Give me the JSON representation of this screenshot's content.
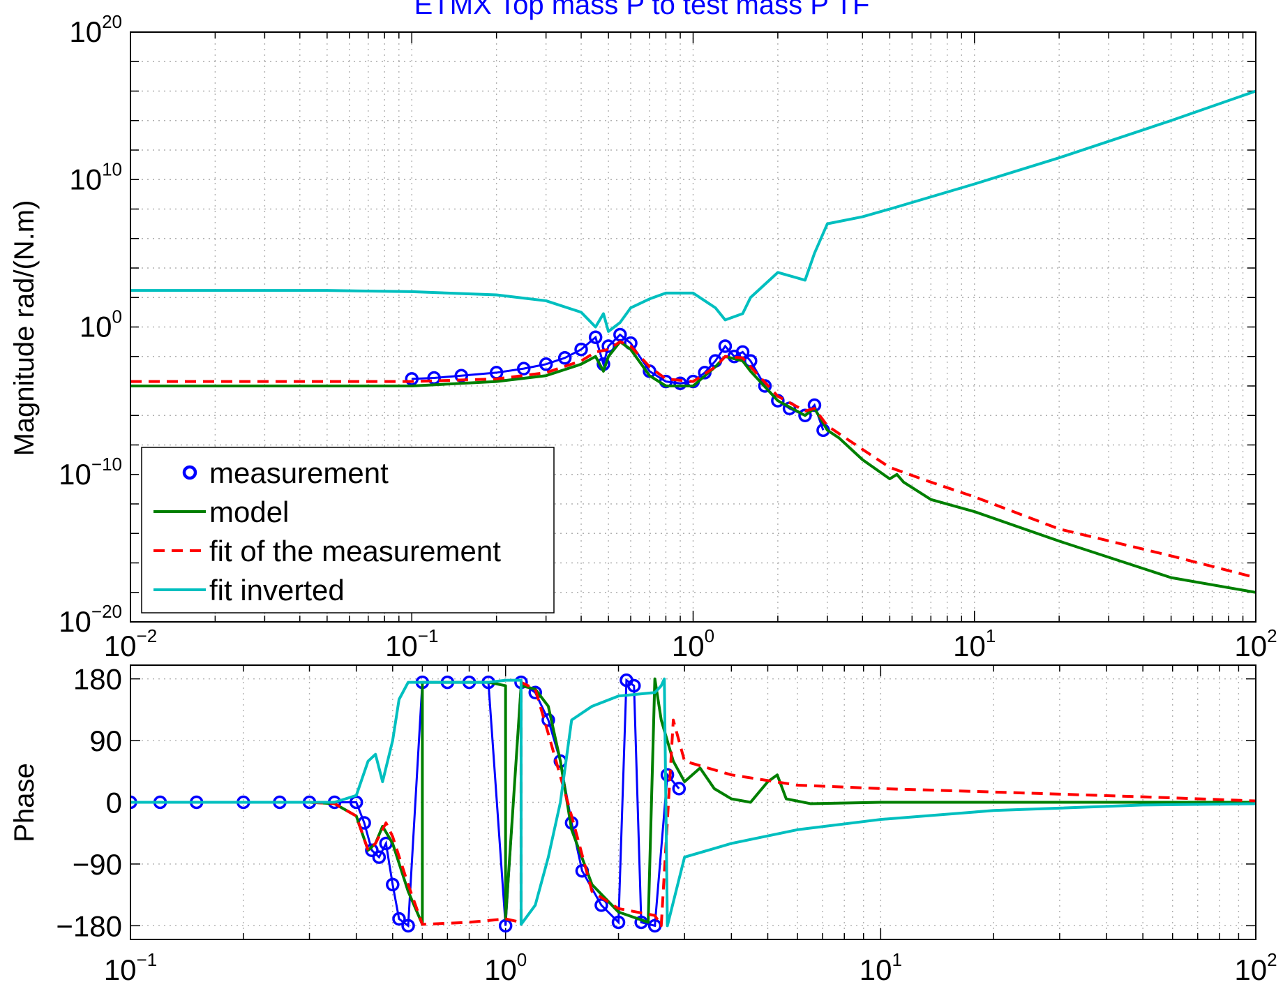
{
  "chart_data": [
    {
      "type": "line",
      "title": "ETMX Top mass P to test mass P TF",
      "title_color": "#0000ff",
      "xlabel": "",
      "ylabel": "Magnitude rad/(N.m)",
      "xscale": "log",
      "yscale": "log",
      "xlim": [
        0.01,
        100
      ],
      "ylim": [
        1e-20,
        1e+20
      ],
      "x_ticks": [
        {
          "base": "10",
          "exp": "−2"
        },
        {
          "base": "10",
          "exp": "−1"
        },
        {
          "base": "10",
          "exp": "0"
        },
        {
          "base": "10",
          "exp": "1"
        },
        {
          "base": "10",
          "exp": "2"
        }
      ],
      "y_ticks": [
        {
          "base": "10",
          "exp": "−20"
        },
        {
          "base": "10",
          "exp": "−10"
        },
        {
          "base": "10",
          "exp": "0"
        },
        {
          "base": "10",
          "exp": "10"
        },
        {
          "base": "10",
          "exp": "20"
        }
      ],
      "grid": true,
      "legend_position": "bottom-left",
      "series": [
        {
          "name": "measurement",
          "color": "#0000ff",
          "style": "circle",
          "x": [
            0.1,
            0.12,
            0.15,
            0.2,
            0.25,
            0.3,
            0.35,
            0.4,
            0.45,
            0.48,
            0.5,
            0.55,
            0.6,
            0.7,
            0.8,
            0.9,
            1.0,
            1.1,
            1.2,
            1.3,
            1.4,
            1.5,
            1.6,
            1.8,
            2.0,
            2.2,
            2.5,
            2.7,
            2.9
          ],
          "y": [
            0.0003,
            0.00035,
            0.0005,
            0.0008,
            0.0015,
            0.003,
            0.008,
            0.03,
            0.2,
            0.003,
            0.05,
            0.3,
            0.08,
            0.001,
            0.0002,
            0.00015,
            0.0002,
            0.0008,
            0.005,
            0.05,
            0.01,
            0.02,
            0.005,
            0.0001,
            1e-05,
            3e-06,
            1e-06,
            5e-06,
            1e-07
          ]
        },
        {
          "name": "model",
          "color": "#007f00",
          "style": "solid",
          "x": [
            0.01,
            0.05,
            0.1,
            0.2,
            0.3,
            0.4,
            0.45,
            0.48,
            0.5,
            0.55,
            0.6,
            0.7,
            0.8,
            0.9,
            1.0,
            1.2,
            1.3,
            1.5,
            1.6,
            2.0,
            2.5,
            2.7,
            3.0,
            3.3,
            4.0,
            5.0,
            5.3,
            5.6,
            7.0,
            10,
            20,
            50,
            100
          ],
          "y": [
            0.0001,
            0.0001,
            0.0001,
            0.0002,
            0.0005,
            0.003,
            0.01,
            0.001,
            0.01,
            0.1,
            0.03,
            0.0005,
            0.0001,
            0.0001,
            0.0001,
            0.002,
            0.01,
            0.005,
            0.001,
            1e-05,
            1e-06,
            3e-06,
            1e-07,
            3e-08,
            1e-09,
            5e-11,
            1e-10,
            3e-11,
            2e-12,
            3e-13,
            3e-15,
            1e-17,
            1e-18
          ]
        },
        {
          "name": "fit of the measurement",
          "color": "#ff0000",
          "style": "dashed",
          "x": [
            0.01,
            0.05,
            0.1,
            0.2,
            0.3,
            0.4,
            0.45,
            0.5,
            0.55,
            0.6,
            0.7,
            0.8,
            1.0,
            1.2,
            1.3,
            1.5,
            1.6,
            2.0,
            2.5,
            2.7,
            3.0,
            4.0,
            5.0,
            7.0,
            10,
            20,
            50,
            100
          ],
          "y": [
            0.0002,
            0.0002,
            0.0002,
            0.0003,
            0.0008,
            0.005,
            0.02,
            0.03,
            0.1,
            0.05,
            0.002,
            0.0003,
            0.0002,
            0.002,
            0.01,
            0.008,
            0.002,
            2e-05,
            2e-06,
            3e-06,
            2e-07,
            5e-09,
            3e-10,
            3e-11,
            3e-12,
            2e-14,
            3e-16,
            1e-17
          ]
        },
        {
          "name": "fit inverted",
          "color": "#00bfbf",
          "style": "solid",
          "x": [
            0.01,
            0.05,
            0.1,
            0.2,
            0.3,
            0.4,
            0.45,
            0.48,
            0.5,
            0.55,
            0.6,
            0.7,
            0.8,
            1.0,
            1.2,
            1.3,
            1.5,
            1.6,
            2.0,
            2.5,
            2.7,
            3.0,
            4.0,
            5.0,
            10,
            20,
            50,
            100
          ],
          "y": [
            300,
            300,
            250,
            150,
            60,
            10,
            1,
            8,
            0.5,
            2,
            20,
            80,
            200,
            200,
            20,
            3,
            8,
            100,
            5000,
            1500,
            100000.0,
            10000000.0,
            30000000.0,
            100000000.0,
            5000000000.0,
            300000000000.0,
            100000000000000.0,
            1e+16
          ]
        }
      ]
    },
    {
      "type": "line",
      "title": "",
      "xlabel": "",
      "ylabel": "Phase",
      "xscale": "log",
      "xlim": [
        0.1,
        100
      ],
      "ylim": [
        -200,
        200
      ],
      "x_ticks": [
        {
          "base": "10",
          "exp": "−1"
        },
        {
          "base": "10",
          "exp": "0"
        },
        {
          "base": "10",
          "exp": "1"
        },
        {
          "base": "10",
          "exp": "2"
        }
      ],
      "y_ticks": [
        "180",
        "90",
        "0",
        "−90",
        "−180"
      ],
      "y_tick_values": [
        180,
        90,
        0,
        -90,
        -180
      ],
      "grid": true,
      "series": [
        {
          "name": "measurement",
          "color": "#0000ff",
          "style": "circle",
          "x": [
            0.1,
            0.12,
            0.15,
            0.2,
            0.25,
            0.3,
            0.35,
            0.4,
            0.42,
            0.44,
            0.46,
            0.48,
            0.5,
            0.52,
            0.55,
            0.6,
            0.7,
            0.8,
            0.9,
            1.0,
            1.1,
            1.2,
            1.3,
            1.4,
            1.5,
            1.6,
            1.8,
            2.0,
            2.1,
            2.2,
            2.3,
            2.5,
            2.7,
            2.9
          ],
          "y": [
            0,
            0,
            0,
            0,
            0,
            0,
            0,
            0,
            -30,
            -70,
            -80,
            -60,
            -120,
            -170,
            -180,
            175,
            175,
            175,
            175,
            -180,
            175,
            160,
            120,
            60,
            -30,
            -100,
            -150,
            -175,
            178,
            170,
            -175,
            -180,
            40,
            20
          ]
        },
        {
          "name": "model",
          "color": "#007f00",
          "style": "solid",
          "x": [
            0.1,
            0.2,
            0.3,
            0.35,
            0.4,
            0.43,
            0.45,
            0.47,
            0.5,
            0.55,
            0.6,
            0.6,
            0.7,
            0.9,
            1.0,
            1.0,
            1.1,
            1.2,
            1.3,
            1.4,
            1.5,
            1.7,
            2.0,
            2.4,
            2.5,
            2.6,
            2.8,
            3.0,
            3.3,
            3.6,
            4.0,
            4.5,
            5.0,
            5.3,
            5.6,
            6.5,
            10,
            20,
            50,
            100
          ],
          "y": [
            0,
            0,
            0,
            -2,
            -20,
            -70,
            -60,
            -35,
            -60,
            -130,
            -178,
            175,
            175,
            175,
            170,
            -170,
            170,
            165,
            140,
            60,
            -40,
            -120,
            -160,
            -175,
            180,
            120,
            60,
            30,
            50,
            20,
            5,
            0,
            30,
            40,
            5,
            -2,
            0,
            0,
            0,
            0
          ]
        },
        {
          "name": "fit of the measurement",
          "color": "#ff0000",
          "style": "dashed",
          "x": [
            0.1,
            0.2,
            0.3,
            0.35,
            0.4,
            0.43,
            0.45,
            0.48,
            0.5,
            0.55,
            0.6,
            0.8,
            1.0,
            1.1,
            1.1,
            1.2,
            1.3,
            1.5,
            1.7,
            2.0,
            2.5,
            2.6,
            2.8,
            3.0,
            4.0,
            6.0,
            10,
            20,
            50,
            100
          ],
          "y": [
            0,
            0,
            0,
            -2,
            -20,
            -70,
            -60,
            -30,
            -50,
            -120,
            -178,
            -175,
            -170,
            -175,
            175,
            165,
            100,
            -20,
            -130,
            -155,
            -165,
            -180,
            120,
            60,
            40,
            25,
            20,
            15,
            8,
            2
          ]
        },
        {
          "name": "fit inverted",
          "color": "#00bfbf",
          "style": "solid",
          "x": [
            0.1,
            0.2,
            0.3,
            0.35,
            0.4,
            0.43,
            0.45,
            0.47,
            0.5,
            0.52,
            0.55,
            0.7,
            0.9,
            1.0,
            1.1,
            1.1,
            1.2,
            1.3,
            1.4,
            1.5,
            1.7,
            2.0,
            2.5,
            2.6,
            2.65,
            2.7,
            3.0,
            4.0,
            6.0,
            10,
            20,
            50,
            100
          ],
          "y": [
            0,
            0,
            0,
            0,
            10,
            60,
            70,
            30,
            90,
            150,
            175,
            175,
            175,
            178,
            178,
            -178,
            -150,
            -80,
            0,
            120,
            140,
            155,
            160,
            170,
            180,
            -180,
            -80,
            -60,
            -40,
            -25,
            -12,
            -4,
            -2
          ]
        }
      ]
    }
  ],
  "legend": {
    "items": [
      {
        "label": "measurement",
        "color": "#0000ff",
        "style": "circle"
      },
      {
        "label": "model",
        "color": "#007f00",
        "style": "solid"
      },
      {
        "label": "fit of the measurement",
        "color": "#ff0000",
        "style": "dashed"
      },
      {
        "label": "fit inverted",
        "color": "#00bfbf",
        "style": "solid"
      }
    ]
  }
}
